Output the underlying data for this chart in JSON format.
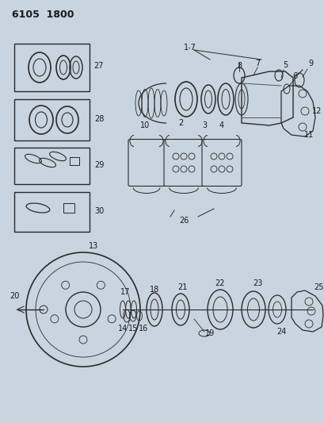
{
  "bg_color": "#c8d4e0",
  "line_color": "#2a2a2a",
  "text_color": "#1a1a1a",
  "title": "6105  1800",
  "fig_width": 4.1,
  "fig_height": 5.33,
  "dpi": 100
}
